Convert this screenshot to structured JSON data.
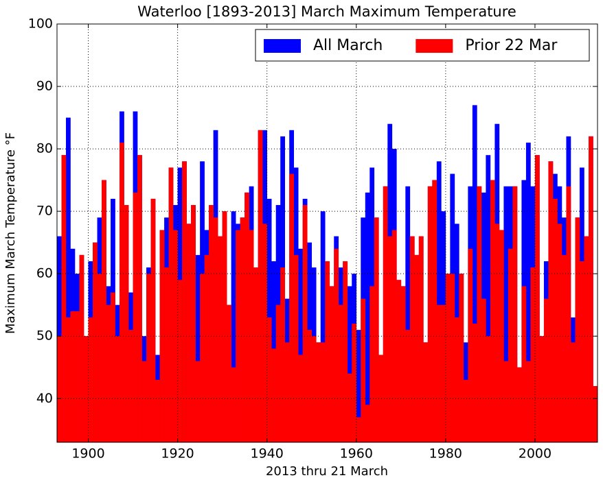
{
  "chart_data": {
    "type": "bar",
    "title": "Waterloo [1893-2013] March Maximum Temperature",
    "x_label": "2013 thru 21 March",
    "y_label": "Maximum March Temperature °F",
    "x": [
      1893,
      1894,
      1895,
      1896,
      1897,
      1898,
      1899,
      1900,
      1901,
      1902,
      1903,
      1904,
      1905,
      1906,
      1907,
      1908,
      1909,
      1910,
      1911,
      1912,
      1913,
      1914,
      1915,
      1916,
      1917,
      1918,
      1919,
      1920,
      1921,
      1922,
      1923,
      1924,
      1925,
      1926,
      1927,
      1928,
      1929,
      1930,
      1931,
      1932,
      1933,
      1934,
      1935,
      1936,
      1937,
      1938,
      1939,
      1940,
      1941,
      1942,
      1943,
      1944,
      1945,
      1946,
      1947,
      1948,
      1949,
      1950,
      1951,
      1952,
      1953,
      1954,
      1955,
      1956,
      1957,
      1958,
      1959,
      1960,
      1961,
      1962,
      1963,
      1964,
      1965,
      1966,
      1967,
      1968,
      1969,
      1970,
      1971,
      1972,
      1973,
      1974,
      1975,
      1976,
      1977,
      1978,
      1979,
      1980,
      1981,
      1982,
      1983,
      1984,
      1985,
      1986,
      1987,
      1988,
      1989,
      1990,
      1991,
      1992,
      1993,
      1994,
      1995,
      1996,
      1997,
      1998,
      1999,
      2000,
      2001,
      2002,
      2003,
      2004,
      2005,
      2006,
      2007,
      2008,
      2009,
      2010,
      2011,
      2012,
      2013
    ],
    "series": [
      {
        "name": "All March",
        "color": "#0000ff",
        "values": [
          66,
          79,
          85,
          64,
          60,
          63,
          50,
          62,
          65,
          69,
          75,
          58,
          72,
          55,
          86,
          71,
          57,
          86,
          79,
          50,
          61,
          72,
          47,
          67,
          69,
          77,
          71,
          77,
          78,
          68,
          71,
          63,
          78,
          67,
          71,
          83,
          66,
          70,
          55,
          70,
          68,
          69,
          73,
          74,
          61,
          83,
          83,
          72,
          62,
          71,
          82,
          56,
          83,
          77,
          64,
          72,
          65,
          61,
          49,
          70,
          62,
          58,
          66,
          61,
          62,
          58,
          60,
          51,
          69,
          73,
          77,
          69,
          47,
          74,
          84,
          80,
          59,
          58,
          74,
          66,
          63,
          66,
          49,
          74,
          75,
          78,
          70,
          60,
          76,
          68,
          60,
          49,
          74,
          87,
          74,
          73,
          79,
          75,
          84,
          67,
          74,
          74,
          74,
          45,
          75,
          81,
          74,
          79,
          50,
          62,
          78,
          76,
          74,
          69,
          82,
          53,
          69,
          77,
          66,
          82,
          42
        ]
      },
      {
        "name": "Prior 22 Mar",
        "color": "#ff0000",
        "values": [
          50,
          79,
          53,
          54,
          54,
          63,
          50,
          53,
          65,
          60,
          75,
          55,
          57,
          50,
          81,
          71,
          51,
          73,
          79,
          46,
          60,
          72,
          43,
          67,
          61,
          77,
          67,
          59,
          78,
          68,
          71,
          46,
          60,
          63,
          71,
          69,
          66,
          70,
          55,
          45,
          67,
          69,
          73,
          67,
          61,
          83,
          68,
          53,
          48,
          55,
          61,
          49,
          76,
          63,
          47,
          71,
          51,
          50,
          49,
          49,
          62,
          58,
          64,
          55,
          62,
          44,
          52,
          37,
          56,
          39,
          58,
          69,
          47,
          74,
          66,
          67,
          59,
          58,
          51,
          66,
          63,
          66,
          49,
          74,
          75,
          55,
          55,
          60,
          60,
          53,
          60,
          43,
          64,
          52,
          74,
          56,
          50,
          75,
          68,
          67,
          46,
          64,
          74,
          45,
          58,
          46,
          61,
          79,
          50,
          56,
          78,
          72,
          68,
          63,
          74,
          49,
          69,
          62,
          66,
          82,
          42
        ]
      }
    ],
    "xlim": [
      1893,
      2014
    ],
    "xticks": [
      1900,
      1920,
      1940,
      1960,
      1980,
      2000
    ],
    "ylim": [
      33,
      100
    ],
    "yticks": [
      40,
      50,
      60,
      70,
      80,
      90,
      100
    ],
    "grid": true,
    "legend": "upper right"
  }
}
